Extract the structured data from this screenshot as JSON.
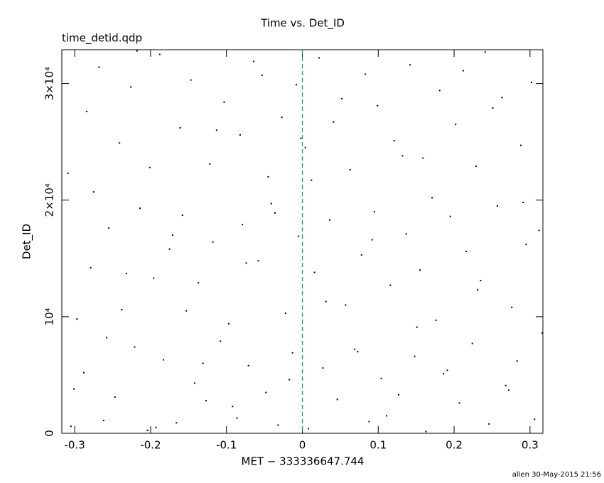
{
  "chart_data": {
    "type": "scatter",
    "title": "Time vs. Det_ID",
    "subtitle": "time_detid.qdp",
    "x_label": "MET − 333336647.744",
    "y_label": "Det_ID",
    "annotation": "allen 30-May-2015 21:56",
    "xlim": [
      -0.317,
      0.317
    ],
    "ylim": [
      0,
      32900
    ],
    "xticks": [
      -0.3,
      -0.2,
      -0.1,
      0,
      0.1,
      0.2,
      0.3
    ],
    "yticks": [
      0,
      {
        "value": 10000,
        "label": "10⁴"
      },
      {
        "value": 20000,
        "label": "2×10⁴"
      },
      {
        "value": 30000,
        "label": "3×10⁴"
      }
    ],
    "vline": {
      "x": 0,
      "color": "#00a0a0"
    },
    "color": "#000000",
    "x": [
      -0.305,
      -0.288,
      -0.262,
      -0.247,
      -0.221,
      -0.204,
      -0.183,
      -0.166,
      -0.142,
      -0.127,
      -0.108,
      -0.086,
      -0.071,
      -0.048,
      -0.032,
      -0.013,
      0.008,
      0.027,
      0.046,
      0.069,
      0.088,
      0.104,
      0.127,
      0.148,
      0.163,
      0.186,
      0.207,
      0.224,
      0.246,
      0.268,
      0.283,
      0.306,
      -0.297,
      -0.279,
      -0.255,
      -0.238,
      -0.214,
      -0.196,
      -0.175,
      -0.158,
      -0.137,
      -0.118,
      -0.097,
      -0.079,
      -0.058,
      -0.041,
      -0.022,
      -0.005,
      0.016,
      0.036,
      0.057,
      0.078,
      0.095,
      0.116,
      0.137,
      0.155,
      0.176,
      0.195,
      0.216,
      0.235,
      0.257,
      0.276,
      0.295,
      0.312,
      -0.309,
      -0.284,
      -0.268,
      -0.241,
      -0.226,
      -0.201,
      -0.188,
      -0.161,
      -0.147,
      -0.122,
      -0.103,
      -0.082,
      -0.064,
      -0.045,
      -0.027,
      -0.008,
      0.004,
      0.022,
      0.041,
      0.063,
      0.083,
      0.099,
      0.121,
      0.142,
      0.159,
      0.181,
      0.202,
      0.229,
      0.241,
      0.263,
      0.288,
      0.302,
      -0.301,
      -0.275,
      -0.258,
      -0.232,
      -0.218,
      -0.193,
      -0.171,
      -0.153,
      -0.131,
      -0.113,
      -0.092,
      -0.074,
      -0.053,
      -0.036,
      -0.017,
      0.012,
      0.031,
      0.052,
      0.073,
      0.092,
      0.111,
      0.132,
      0.151,
      0.171,
      0.191,
      0.212,
      0.231,
      0.251,
      0.272,
      0.291,
      0.316,
      -0.002
    ],
    "values": [
      600,
      5200,
      1100,
      3100,
      7400,
      250,
      6300,
      900,
      4300,
      2800,
      7900,
      1300,
      5800,
      3500,
      700,
      6900,
      400,
      5600,
      2900,
      7200,
      1000,
      4700,
      3300,
      6600,
      150,
      5100,
      2600,
      7700,
      800,
      4100,
      6200,
      1200,
      9800,
      14200,
      17600,
      10600,
      19300,
      13300,
      15800,
      18700,
      12900,
      16400,
      9400,
      17900,
      14800,
      19700,
      10300,
      16900,
      13800,
      18300,
      11000,
      15300,
      19000,
      12700,
      17100,
      14000,
      9700,
      18600,
      15600,
      13100,
      19500,
      10800,
      16200,
      17400,
      22300,
      27600,
      31400,
      24900,
      29700,
      22800,
      32500,
      26200,
      30300,
      23100,
      28400,
      25600,
      31900,
      22000,
      27100,
      29900,
      24500,
      32200,
      26700,
      22600,
      30800,
      28100,
      25100,
      31600,
      23600,
      29400,
      26500,
      22900,
      32700,
      28800,
      24700,
      30100,
      3800,
      20700,
      8200,
      13700,
      32800,
      500,
      17000,
      10500,
      6000,
      26000,
      2300,
      14600,
      30700,
      18900,
      4600,
      21700,
      11300,
      28700,
      7000,
      16600,
      1500,
      23800,
      9100,
      20200,
      5400,
      31100,
      12300,
      27900,
      3700,
      19800,
      8600,
      25300
    ]
  }
}
